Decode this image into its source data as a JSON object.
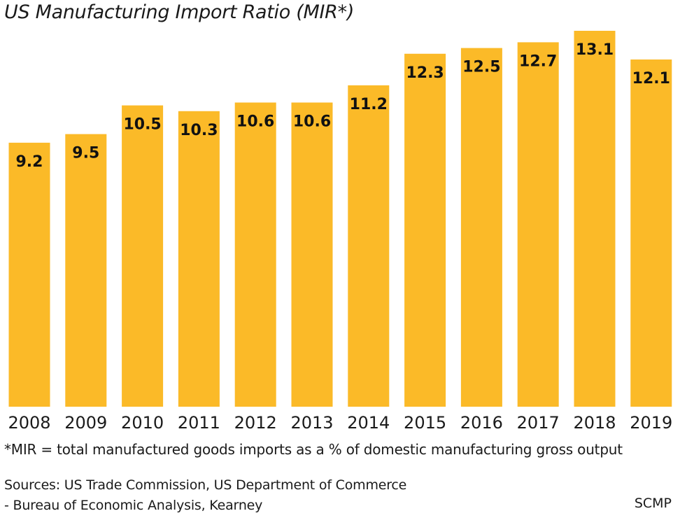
{
  "chart_data": {
    "type": "bar",
    "title": "US Manufacturing Import Ratio (MIR*)",
    "categories": [
      "2008",
      "2009",
      "2010",
      "2011",
      "2012",
      "2013",
      "2014",
      "2015",
      "2016",
      "2017",
      "2018",
      "2019"
    ],
    "values": [
      9.2,
      9.5,
      10.5,
      10.3,
      10.6,
      10.6,
      11.2,
      12.3,
      12.5,
      12.7,
      13.1,
      12.1
    ],
    "data_labels": [
      "9.2",
      "9.5",
      "10.5",
      "10.3",
      "10.6",
      "10.6",
      "11.2",
      "12.3",
      "12.5",
      "12.7",
      "13.1",
      "12.1"
    ],
    "xlabel": "",
    "ylabel": "",
    "ylim": [
      0,
      13.1
    ],
    "grid": false,
    "bar_color": "#FBBA28",
    "label_color": "#111111"
  },
  "footnote": "*MIR = total manufactured goods imports as a % of domestic manufacturing gross output",
  "sources_line1": "Sources: US Trade Commission, US Department of Commerce",
  "sources_line2": "- Bureau of Economic Analysis, Kearney",
  "credit": "SCMP"
}
